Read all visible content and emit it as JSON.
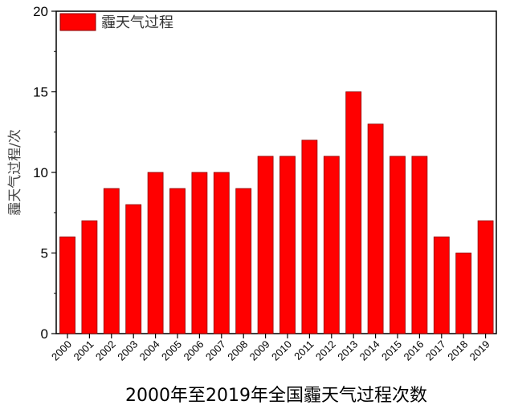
{
  "chart_data": {
    "type": "bar",
    "title": "2000年至2019年全国霾天气过程次数",
    "xlabel": "2000年至2019年全国霾天气过程次数",
    "ylabel": "霾天气过程/次",
    "categories": [
      "2000",
      "2001",
      "2002",
      "2003",
      "2004",
      "2005",
      "2006",
      "2007",
      "2008",
      "2009",
      "2010",
      "2011",
      "2012",
      "2013",
      "2014",
      "2015",
      "2016",
      "2017",
      "2018",
      "2019"
    ],
    "series": [
      {
        "name": "霾天气过程",
        "color": "#ff0000",
        "values": [
          6,
          7,
          9,
          8,
          10,
          9,
          10,
          10,
          9,
          11,
          11,
          12,
          11,
          15,
          13,
          11,
          11,
          6,
          5,
          7
        ]
      }
    ],
    "ylim": [
      0,
      20
    ],
    "yticks": [
      0,
      5,
      10,
      15,
      20
    ],
    "minor_yticks": [
      2.5,
      7.5,
      12.5,
      17.5
    ],
    "grid": false,
    "legend_position": "top-left",
    "xtick_rotation": -45
  },
  "colors": {
    "bar_fill": "#ff0000",
    "bar_edge": "#8b0000",
    "axis": "#000000",
    "text": "#000000"
  }
}
